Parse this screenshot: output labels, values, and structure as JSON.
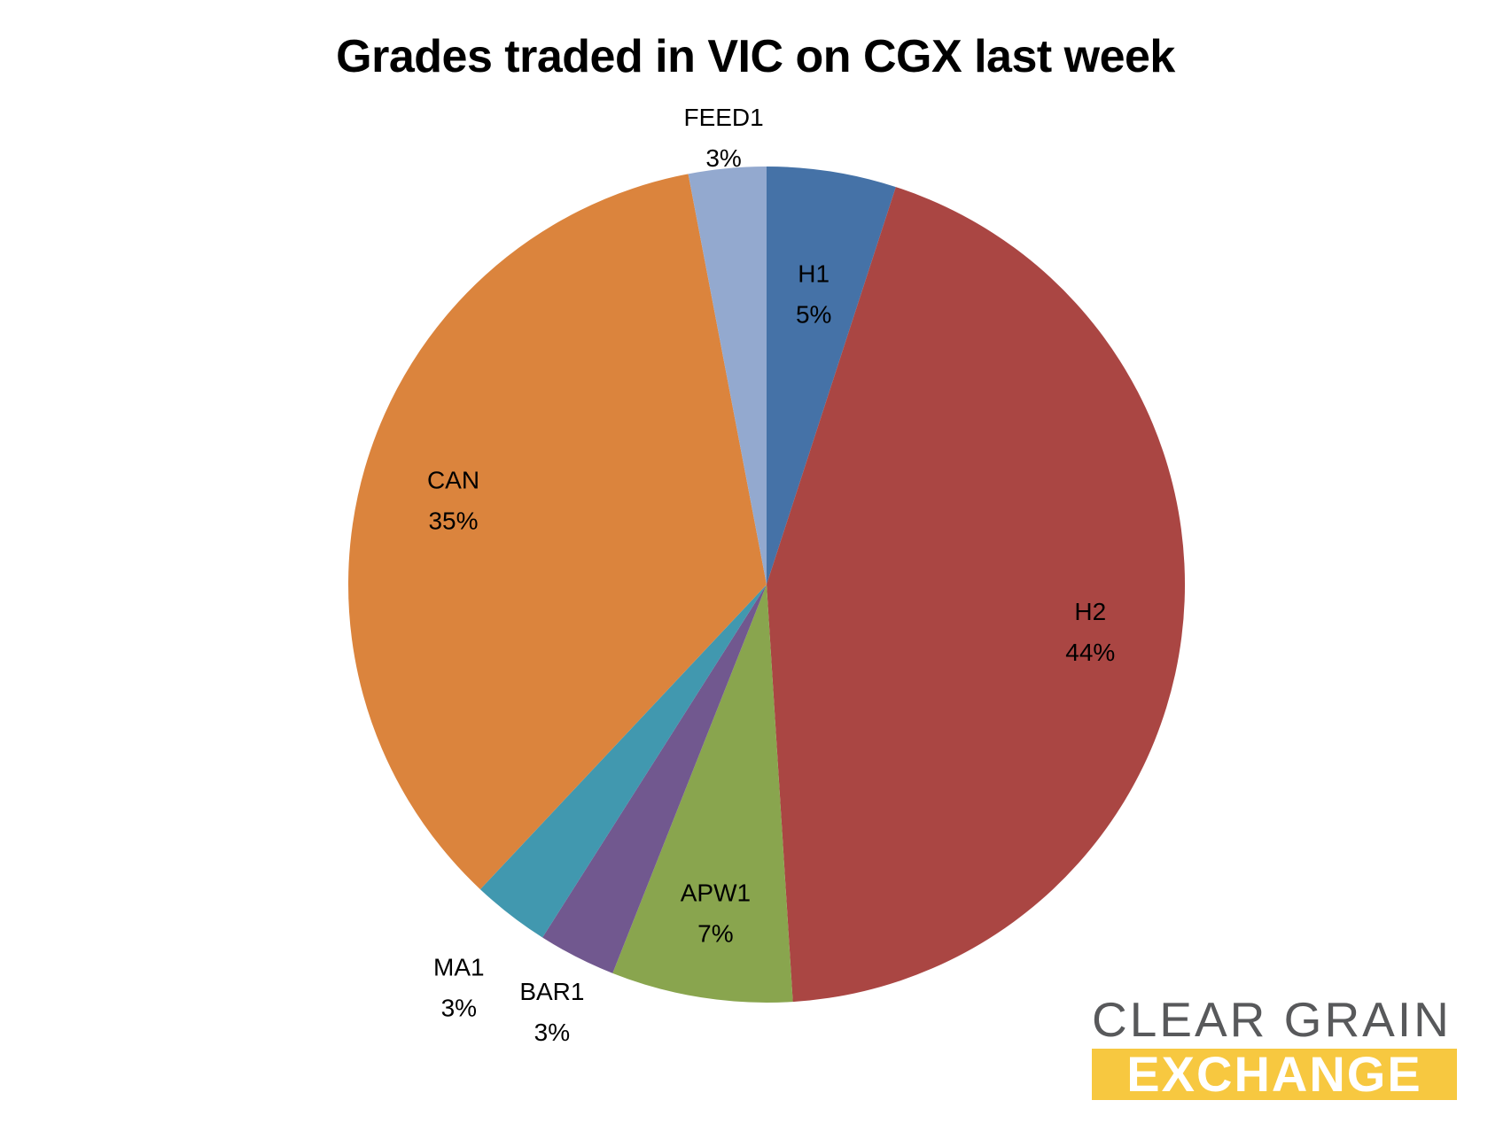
{
  "chart_data": {
    "type": "pie",
    "title": "Grades traded in VIC on CGX last week",
    "legend": "none",
    "slices": [
      {
        "name": "H1",
        "value": 5,
        "label": "5%",
        "color": "#4572a7"
      },
      {
        "name": "H2",
        "value": 44,
        "label": "44%",
        "color": "#aa4643"
      },
      {
        "name": "APW1",
        "value": 7,
        "label": "7%",
        "color": "#89a54e"
      },
      {
        "name": "BAR1",
        "value": 3,
        "label": "3%",
        "color": "#71588f"
      },
      {
        "name": "MA1",
        "value": 3,
        "label": "3%",
        "color": "#4198af"
      },
      {
        "name": "CAN",
        "value": 35,
        "label": "35%",
        "color": "#db843d"
      },
      {
        "name": "FEED1",
        "value": 3,
        "label": "3%",
        "color": "#93a9cf"
      }
    ]
  },
  "logo": {
    "line1": "CLEAR GRAIN",
    "line2": "EXCHANGE",
    "text_color": "#58595b",
    "band_color": "#f7c840"
  }
}
